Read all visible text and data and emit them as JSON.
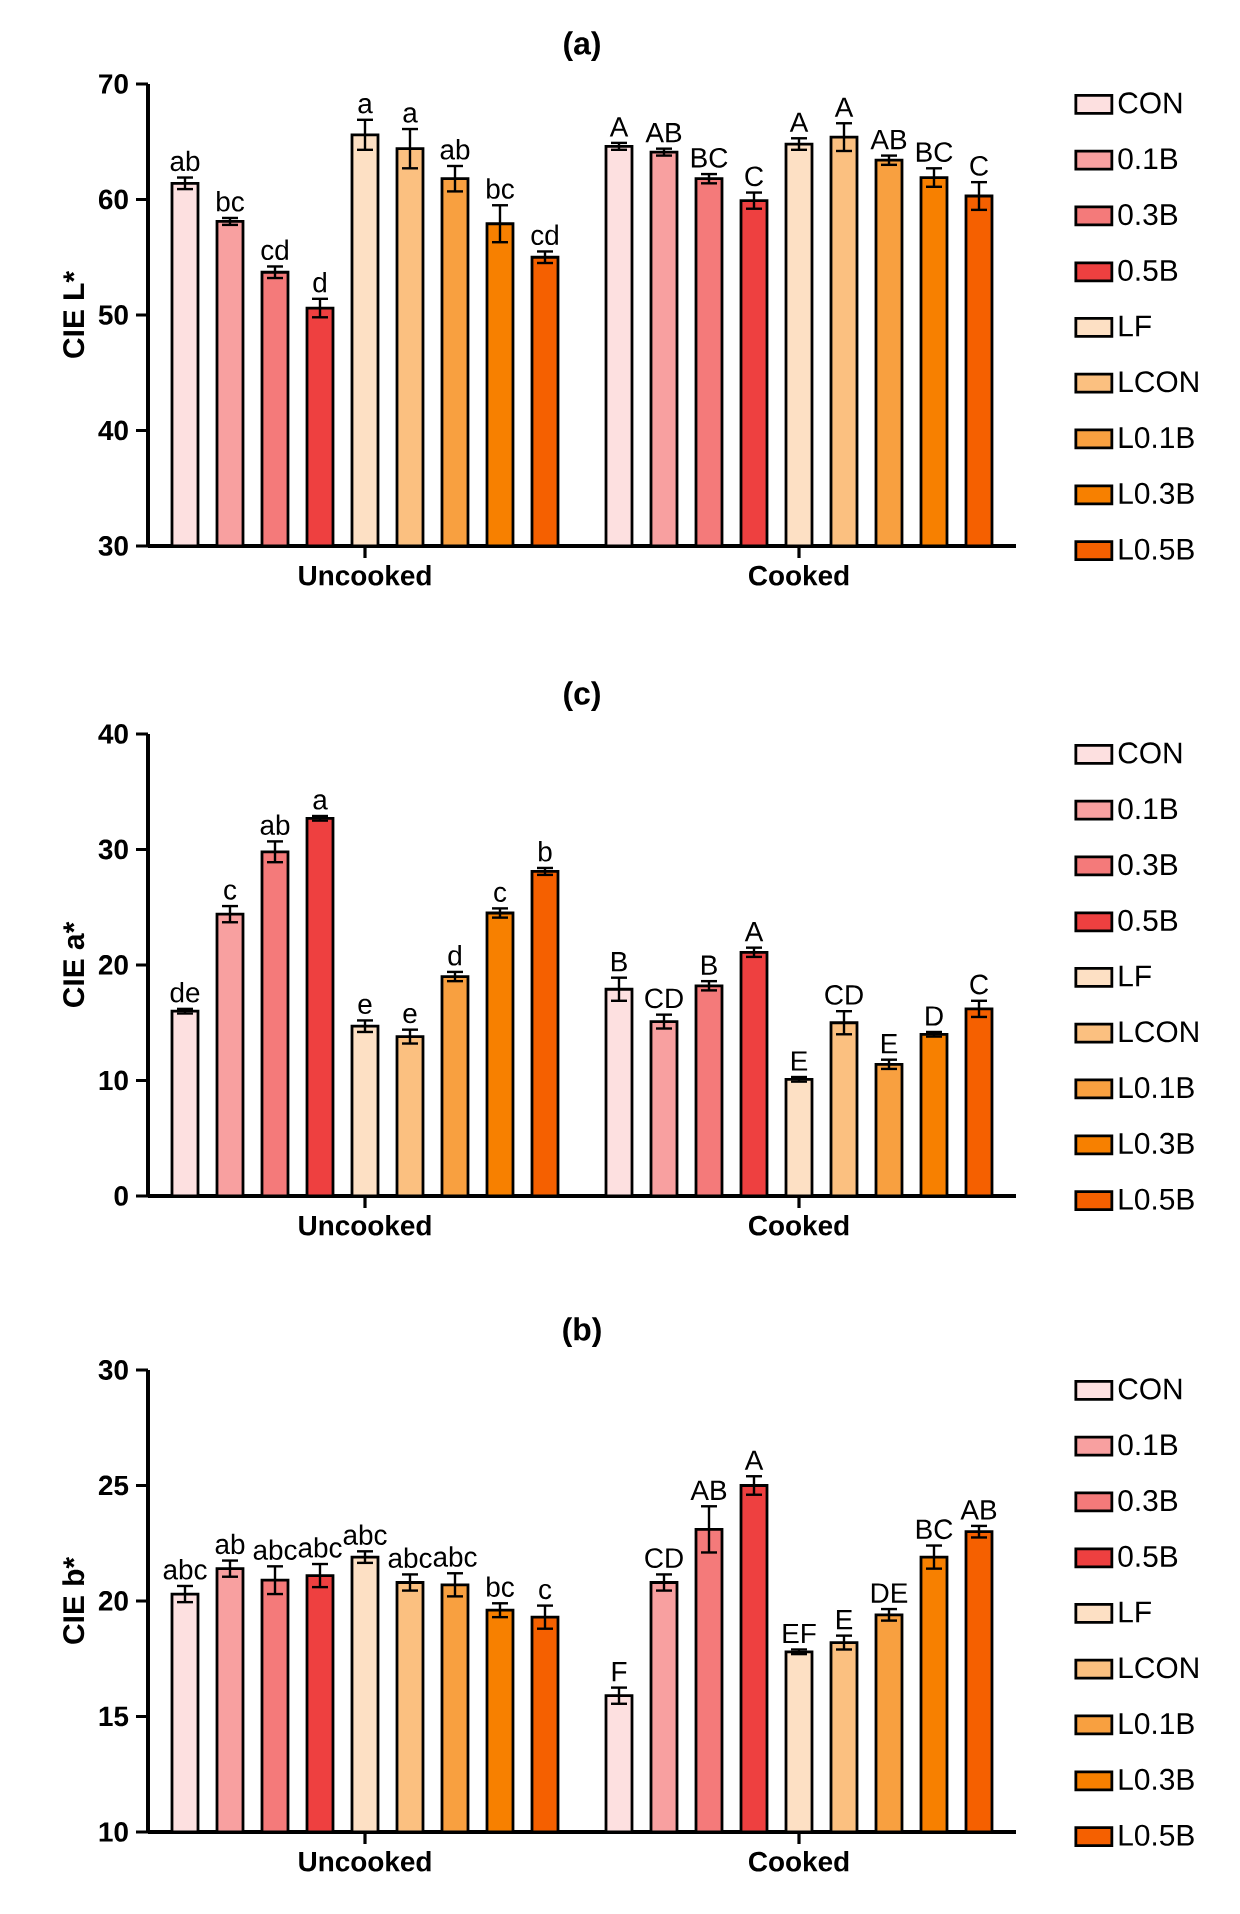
{
  "chart_data": [
    {
      "type": "bar",
      "title": "(a)",
      "ylabel": "CIE L*",
      "categories": [
        "Uncooked",
        "Cooked"
      ],
      "ylim": [
        30,
        70
      ],
      "yticks": [
        30,
        40,
        50,
        60,
        70
      ],
      "legend": "right",
      "series": [
        {
          "name": "CON",
          "color": "#fde0e0",
          "values": [
            61.4,
            64.6
          ],
          "errors": [
            0.5,
            0.3
          ],
          "value_labels": [
            "ab",
            "A"
          ]
        },
        {
          "name": "0.1B",
          "color": "#f8a0a0",
          "values": [
            58.1,
            64.1
          ],
          "errors": [
            0.3,
            0.3
          ],
          "value_labels": [
            "bc",
            "AB"
          ]
        },
        {
          "name": "0.3B",
          "color": "#f47a7a",
          "values": [
            53.7,
            61.8
          ],
          "errors": [
            0.5,
            0.4
          ],
          "value_labels": [
            "cd",
            "BC"
          ]
        },
        {
          "name": "0.5B",
          "color": "#ee4040",
          "values": [
            50.6,
            59.9
          ],
          "errors": [
            0.8,
            0.7
          ],
          "value_labels": [
            "d",
            "C"
          ]
        },
        {
          "name": "LF",
          "color": "#fde0c4",
          "values": [
            65.6,
            64.8
          ],
          "errors": [
            1.3,
            0.5
          ],
          "value_labels": [
            "a",
            "A"
          ]
        },
        {
          "name": "LCON",
          "color": "#fbc080",
          "values": [
            64.4,
            65.4
          ],
          "errors": [
            1.7,
            1.2
          ],
          "value_labels": [
            "a",
            "A"
          ]
        },
        {
          "name": "L0.1B",
          "color": "#f8a040",
          "values": [
            61.8,
            63.4
          ],
          "errors": [
            1.1,
            0.4
          ],
          "value_labels": [
            "ab",
            "AB"
          ]
        },
        {
          "name": "L0.3B",
          "color": "#f78000",
          "values": [
            57.9,
            61.9
          ],
          "errors": [
            1.6,
            0.8
          ],
          "value_labels": [
            "bc",
            "BC"
          ]
        },
        {
          "name": "L0.5B",
          "color": "#f56000",
          "values": [
            55.0,
            60.3
          ],
          "errors": [
            0.5,
            1.2
          ],
          "value_labels": [
            "cd",
            "C"
          ]
        }
      ]
    },
    {
      "type": "bar",
      "title": "(c)",
      "ylabel": "CIE a*",
      "categories": [
        "Uncooked",
        "Cooked"
      ],
      "ylim": [
        0,
        40
      ],
      "yticks": [
        0,
        10,
        20,
        30,
        40
      ],
      "legend": "right",
      "series": [
        {
          "name": "CON",
          "color": "#fde0e0",
          "values": [
            16.0,
            17.9
          ],
          "errors": [
            0.2,
            1.0
          ],
          "value_labels": [
            "de",
            "B"
          ]
        },
        {
          "name": "0.1B",
          "color": "#f8a0a0",
          "values": [
            24.4,
            15.1
          ],
          "errors": [
            0.7,
            0.6
          ],
          "value_labels": [
            "c",
            "CD"
          ]
        },
        {
          "name": "0.3B",
          "color": "#f47a7a",
          "values": [
            29.8,
            18.2
          ],
          "errors": [
            0.9,
            0.4
          ],
          "value_labels": [
            "ab",
            "B"
          ]
        },
        {
          "name": "0.5B",
          "color": "#ee4040",
          "values": [
            32.7,
            21.1
          ],
          "errors": [
            0.2,
            0.4
          ],
          "value_labels": [
            "a",
            "A"
          ]
        },
        {
          "name": "LF",
          "color": "#fde0c4",
          "values": [
            14.7,
            10.1
          ],
          "errors": [
            0.5,
            0.2
          ],
          "value_labels": [
            "e",
            "E"
          ]
        },
        {
          "name": "LCON",
          "color": "#fbc080",
          "values": [
            13.8,
            15.0
          ],
          "errors": [
            0.6,
            1.0
          ],
          "value_labels": [
            "e",
            "CD"
          ]
        },
        {
          "name": "L0.1B",
          "color": "#f8a040",
          "values": [
            19.0,
            11.4
          ],
          "errors": [
            0.4,
            0.4
          ],
          "value_labels": [
            "d",
            "E"
          ]
        },
        {
          "name": "L0.3B",
          "color": "#f78000",
          "values": [
            24.5,
            14.0
          ],
          "errors": [
            0.4,
            0.2
          ],
          "value_labels": [
            "c",
            "D"
          ]
        },
        {
          "name": "L0.5B",
          "color": "#f56000",
          "values": [
            28.1,
            16.2
          ],
          "errors": [
            0.3,
            0.7
          ],
          "value_labels": [
            "b",
            "C"
          ]
        }
      ]
    },
    {
      "type": "bar",
      "title": "(b)",
      "ylabel": "CIE b*",
      "categories": [
        "Uncooked",
        "Cooked"
      ],
      "ylim": [
        10,
        30
      ],
      "yticks": [
        10,
        15,
        20,
        25,
        30
      ],
      "legend": "right",
      "series": [
        {
          "name": "CON",
          "color": "#fde0e0",
          "values": [
            20.3,
            15.9
          ],
          "errors": [
            0.35,
            0.35
          ],
          "value_labels": [
            "abc",
            "F"
          ]
        },
        {
          "name": "0.1B",
          "color": "#f8a0a0",
          "values": [
            21.4,
            20.8
          ],
          "errors": [
            0.35,
            0.35
          ],
          "value_labels": [
            "ab",
            "CD"
          ]
        },
        {
          "name": "0.3B",
          "color": "#f47a7a",
          "values": [
            20.9,
            23.1
          ],
          "errors": [
            0.6,
            1.0
          ],
          "value_labels": [
            "abc",
            "AB"
          ]
        },
        {
          "name": "0.5B",
          "color": "#ee4040",
          "values": [
            21.1,
            25.0
          ],
          "errors": [
            0.5,
            0.4
          ],
          "value_labels": [
            "abc",
            "A"
          ]
        },
        {
          "name": "LF",
          "color": "#fde0c4",
          "values": [
            21.9,
            17.8
          ],
          "errors": [
            0.25,
            0.1
          ],
          "value_labels": [
            "abc",
            "EF"
          ]
        },
        {
          "name": "LCON",
          "color": "#fbc080",
          "values": [
            20.8,
            18.2
          ],
          "errors": [
            0.35,
            0.3
          ],
          "value_labels": [
            "abc",
            "E"
          ]
        },
        {
          "name": "L0.1B",
          "color": "#f8a040",
          "values": [
            20.7,
            19.4
          ],
          "errors": [
            0.5,
            0.25
          ],
          "value_labels": [
            "abc",
            "DE"
          ]
        },
        {
          "name": "L0.3B",
          "color": "#f78000",
          "values": [
            19.6,
            21.9
          ],
          "errors": [
            0.3,
            0.5
          ],
          "value_labels": [
            "bc",
            "BC"
          ]
        },
        {
          "name": "L0.5B",
          "color": "#f56000",
          "values": [
            19.3,
            23.0
          ],
          "errors": [
            0.5,
            0.25
          ],
          "value_labels": [
            "c",
            "AB"
          ]
        }
      ]
    }
  ]
}
